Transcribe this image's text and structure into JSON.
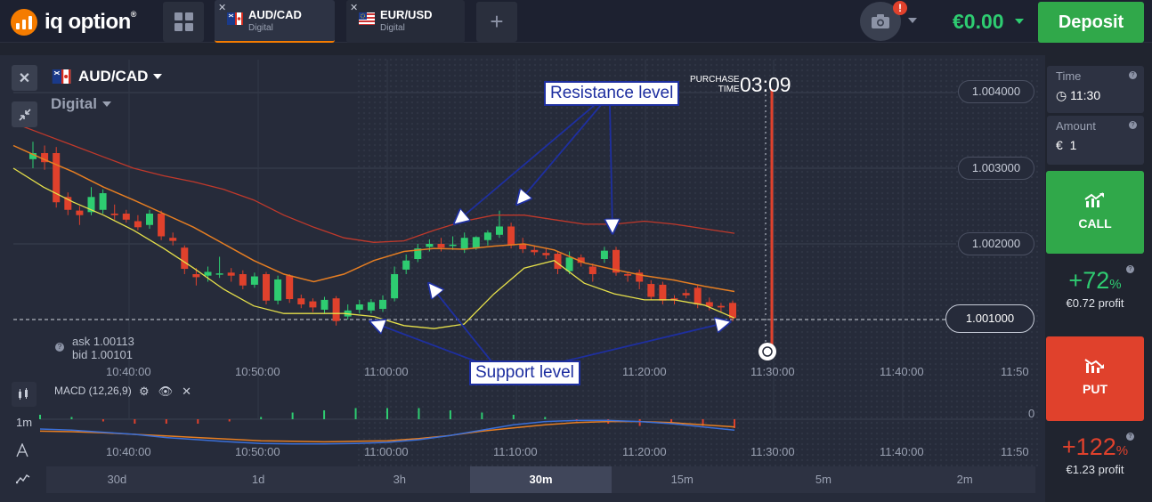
{
  "logo": {
    "text": "iq option",
    "mark": "®"
  },
  "tabs": [
    {
      "name": "AUD/CAD",
      "sub": "Digital",
      "flag": "aud-cad-flag-icon"
    },
    {
      "name": "EUR/USD",
      "sub": "Digital",
      "flag": "eur-usd-flag-icon"
    }
  ],
  "header": {
    "balance": "€0.00",
    "deposit_label": "Deposit",
    "alert_badge": "!"
  },
  "asset": {
    "name": "AUD/CAD",
    "type": "Digital"
  },
  "purchase": {
    "line1": "PURCHASE",
    "line2": "TIME",
    "time": "03:09"
  },
  "prices": {
    "p1": "1.004000",
    "p2": "1.003000",
    "p3": "1.002000",
    "current": "1.001000"
  },
  "quote": {
    "ask": "ask 1.00113",
    "bid": "bid 1.00101"
  },
  "time_axis": [
    "10:40:00",
    "10:50:00",
    "11:00:00",
    "11:10:00",
    "11:20:00",
    "11:30:00",
    "11:40:00",
    "11:50"
  ],
  "macd": {
    "label": "MACD (12,26,9)",
    "zero": "0"
  },
  "interval": "1m",
  "periods": [
    "30d",
    "1d",
    "3h",
    "30m",
    "15m",
    "5m",
    "2m"
  ],
  "selected_period": "30m",
  "annotations": {
    "resistance": "Resistance level",
    "support": "Support level"
  },
  "right_panel": {
    "time_label": "Time",
    "time_value": "11:30",
    "amount_label": "Amount",
    "amount_currency": "€",
    "amount_value": "1",
    "call_label": "CALL",
    "call_pct": "+72",
    "call_profit": "€0.72 profit",
    "put_label": "PUT",
    "put_pct": "+122",
    "put_profit": "€1.23 profit",
    "pct_sign": "%"
  },
  "colors": {
    "up": "#2ecc71",
    "down": "#e0412c",
    "accent": "#f57c00",
    "balance": "#2ecc71",
    "annotation": "#1e2fa0"
  },
  "chart_data": {
    "type": "candlestick",
    "ylim": [
      1.0005,
      1.0042
    ],
    "x_range": [
      "10:35:00",
      "11:55:00"
    ],
    "current_price": 1.001,
    "candles": [
      {
        "o": 1.00312,
        "c": 1.0032,
        "h": 1.00335,
        "l": 1.003
      },
      {
        "o": 1.0032,
        "c": 1.00308,
        "h": 1.0033,
        "l": 1.00298
      },
      {
        "o": 1.0032,
        "c": 1.00255,
        "h": 1.00328,
        "l": 1.00248
      },
      {
        "o": 1.00262,
        "c": 1.00245,
        "h": 1.00268,
        "l": 1.00238
      },
      {
        "o": 1.00244,
        "c": 1.00238,
        "h": 1.0025,
        "l": 1.00225
      },
      {
        "o": 1.00242,
        "c": 1.00262,
        "h": 1.00275,
        "l": 1.00238
      },
      {
        "o": 1.00245,
        "c": 1.00267,
        "h": 1.00272,
        "l": 1.0024
      },
      {
        "o": 1.0024,
        "c": 1.00238,
        "h": 1.00252,
        "l": 1.00232
      },
      {
        "o": 1.0024,
        "c": 1.00232,
        "h": 1.00245,
        "l": 1.00228
      },
      {
        "o": 1.0023,
        "c": 1.00222,
        "h": 1.00238,
        "l": 1.00218
      },
      {
        "o": 1.00225,
        "c": 1.0024,
        "h": 1.00245,
        "l": 1.0022
      },
      {
        "o": 1.0024,
        "c": 1.0021,
        "h": 1.00244,
        "l": 1.00205
      },
      {
        "o": 1.00208,
        "c": 1.00204,
        "h": 1.00215,
        "l": 1.00198
      },
      {
        "o": 1.00195,
        "c": 1.00167,
        "h": 1.00198,
        "l": 1.0016
      },
      {
        "o": 1.0016,
        "c": 1.00156,
        "h": 1.00168,
        "l": 1.00145
      },
      {
        "o": 1.00158,
        "c": 1.00163,
        "h": 1.0017,
        "l": 1.0015
      },
      {
        "o": 1.0016,
        "c": 1.00161,
        "h": 1.00183,
        "l": 1.00155
      },
      {
        "o": 1.00162,
        "c": 1.00158,
        "h": 1.00168,
        "l": 1.0015
      },
      {
        "o": 1.0016,
        "c": 1.00145,
        "h": 1.00165,
        "l": 1.0014
      },
      {
        "o": 1.00146,
        "c": 1.00157,
        "h": 1.00162,
        "l": 1.00142
      },
      {
        "o": 1.0016,
        "c": 1.00125,
        "h": 1.00163,
        "l": 1.0012
      },
      {
        "o": 1.00125,
        "c": 1.00153,
        "h": 1.00158,
        "l": 1.0012
      },
      {
        "o": 1.00158,
        "c": 1.00127,
        "h": 1.0016,
        "l": 1.00122
      },
      {
        "o": 1.00128,
        "c": 1.0012,
        "h": 1.00133,
        "l": 1.00115
      },
      {
        "o": 1.00124,
        "c": 1.00116,
        "h": 1.00128,
        "l": 1.0011
      },
      {
        "o": 1.00113,
        "c": 1.00126,
        "h": 1.0013,
        "l": 1.00108
      },
      {
        "o": 1.00128,
        "c": 1.00098,
        "h": 1.00131,
        "l": 1.00092
      },
      {
        "o": 1.00104,
        "c": 1.00112,
        "h": 1.0012,
        "l": 1.001
      },
      {
        "o": 1.00113,
        "c": 1.0012,
        "h": 1.00126,
        "l": 1.00108
      },
      {
        "o": 1.00112,
        "c": 1.00123,
        "h": 1.00127,
        "l": 1.00108
      },
      {
        "o": 1.00114,
        "c": 1.00126,
        "h": 1.00132,
        "l": 1.0011
      },
      {
        "o": 1.00128,
        "c": 1.0016,
        "h": 1.0017,
        "l": 1.00124
      },
      {
        "o": 1.00166,
        "c": 1.00178,
        "h": 1.00186,
        "l": 1.0016
      },
      {
        "o": 1.0018,
        "c": 1.00194,
        "h": 1.002,
        "l": 1.00176
      },
      {
        "o": 1.00196,
        "c": 1.002,
        "h": 1.00206,
        "l": 1.0019
      },
      {
        "o": 1.002,
        "c": 1.00195,
        "h": 1.00208,
        "l": 1.0019
      },
      {
        "o": 1.00198,
        "c": 1.00199,
        "h": 1.0021,
        "l": 1.00192
      },
      {
        "o": 1.00193,
        "c": 1.00208,
        "h": 1.00215,
        "l": 1.00188
      },
      {
        "o": 1.00194,
        "c": 1.00209,
        "h": 1.0021,
        "l": 1.00192
      },
      {
        "o": 1.00205,
        "c": 1.00215,
        "h": 1.00218,
        "l": 1.00198
      },
      {
        "o": 1.00212,
        "c": 1.00223,
        "h": 1.00244,
        "l": 1.00208
      },
      {
        "o": 1.00223,
        "c": 1.00198,
        "h": 1.00228,
        "l": 1.00194
      },
      {
        "o": 1.002,
        "c": 1.00193,
        "h": 1.00208,
        "l": 1.00188
      },
      {
        "o": 1.00192,
        "c": 1.00189,
        "h": 1.00198,
        "l": 1.00185
      },
      {
        "o": 1.00188,
        "c": 1.00185,
        "h": 1.00194,
        "l": 1.0018
      },
      {
        "o": 1.00187,
        "c": 1.00167,
        "h": 1.0019,
        "l": 1.0016
      },
      {
        "o": 1.00164,
        "c": 1.00182,
        "h": 1.0019,
        "l": 1.0016
      },
      {
        "o": 1.00182,
        "c": 1.00175,
        "h": 1.00186,
        "l": 1.0017
      },
      {
        "o": 1.0017,
        "c": 1.0016,
        "h": 1.00174,
        "l": 1.0015
      },
      {
        "o": 1.0018,
        "c": 1.00191,
        "h": 1.00196,
        "l": 1.00175
      },
      {
        "o": 1.00192,
        "c": 1.00162,
        "h": 1.00196,
        "l": 1.00158
      },
      {
        "o": 1.0016,
        "c": 1.00158,
        "h": 1.00163,
        "l": 1.0015
      },
      {
        "o": 1.00162,
        "c": 1.0015,
        "h": 1.00166,
        "l": 1.0014
      },
      {
        "o": 1.00147,
        "c": 1.0013,
        "h": 1.00152,
        "l": 1.00126
      },
      {
        "o": 1.00146,
        "c": 1.00125,
        "h": 1.0015,
        "l": 1.0012
      },
      {
        "o": 1.00128,
        "c": 1.00125,
        "h": 1.00132,
        "l": 1.0012
      },
      {
        "o": 1.00135,
        "c": 1.00132,
        "h": 1.0014,
        "l": 1.00128
      },
      {
        "o": 1.00142,
        "c": 1.0012,
        "h": 1.00145,
        "l": 1.00115
      },
      {
        "o": 1.00123,
        "c": 1.00117,
        "h": 1.00129,
        "l": 1.00112
      },
      {
        "o": 1.00118,
        "c": 1.00116,
        "h": 1.00122,
        "l": 1.0011
      },
      {
        "o": 1.00122,
        "c": 1.00102,
        "h": 1.00125,
        "l": 1.00098
      }
    ],
    "bands": {
      "upper": [
        1.0036,
        1.00345,
        1.0033,
        1.00315,
        1.003,
        1.0029,
        1.00282,
        1.00272,
        1.00258,
        1.00238,
        1.00222,
        1.00208,
        1.00202,
        1.00204,
        1.00218,
        1.0023,
        1.00238,
        1.00238,
        1.00232,
        1.00226,
        1.00226,
        1.0023,
        1.00226,
        1.0022,
        1.00214
      ],
      "middle": [
        1.0033,
        1.00312,
        1.00295,
        1.00275,
        1.00258,
        1.0024,
        1.00222,
        1.002,
        1.00178,
        1.0016,
        1.0015,
        1.0016,
        1.00178,
        1.0019,
        1.00194,
        1.00193,
        1.00197,
        1.002,
        1.00192,
        1.00175,
        1.00166,
        1.00158,
        1.00152,
        1.00144,
        1.00137
      ],
      "lower": [
        1.003,
        1.00275,
        1.00255,
        1.00238,
        1.00218,
        1.00194,
        1.00168,
        1.0014,
        1.00118,
        1.00108,
        1.00108,
        1.00108,
        1.00104,
        1.00092,
        1.00088,
        1.00094,
        1.00134,
        1.00168,
        1.00178,
        1.00148,
        1.00134,
        1.00126,
        1.00126,
        1.00119,
        1.00102
      ]
    },
    "macd": {
      "fast": [
        0.3,
        0.28,
        0.24,
        0.2,
        0.14,
        0.1,
        0.06,
        0.03,
        0.02,
        0.02,
        0.03,
        0.05,
        0.1,
        0.18,
        0.28,
        0.38,
        0.44,
        0.46,
        0.46,
        0.44,
        0.4,
        0.34,
        0.28
      ],
      "slow": [
        0.26,
        0.25,
        0.23,
        0.2,
        0.17,
        0.14,
        0.11,
        0.08,
        0.07,
        0.06,
        0.07,
        0.08,
        0.12,
        0.18,
        0.26,
        0.32,
        0.38,
        0.42,
        0.44,
        0.44,
        0.42,
        0.38,
        0.34
      ],
      "hist": [
        2,
        1,
        -1,
        -2,
        -2,
        -2,
        -1,
        1,
        3,
        4,
        5,
        5,
        5,
        4,
        3,
        2,
        1,
        -1,
        -2,
        -3,
        -2,
        -3,
        -4
      ]
    }
  }
}
